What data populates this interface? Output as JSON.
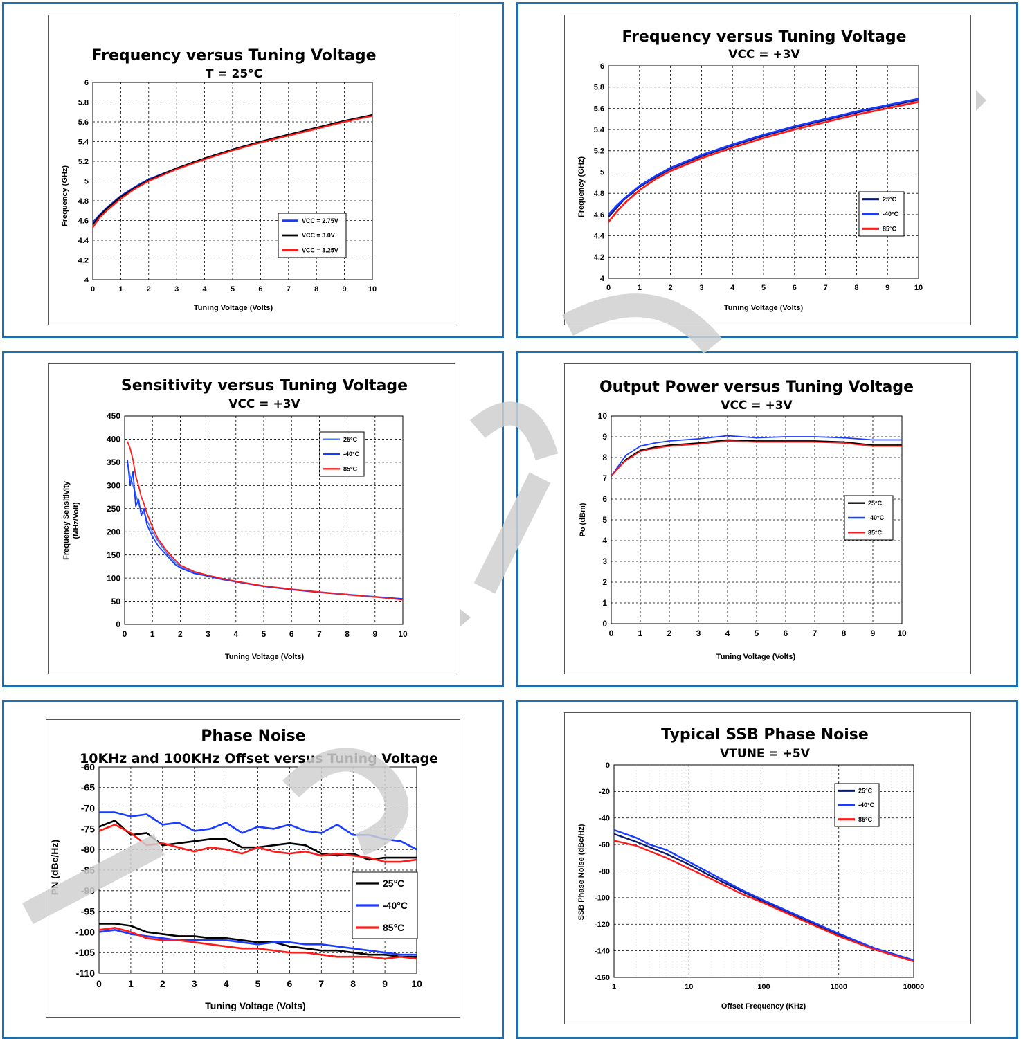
{
  "colors": {
    "panel_border": "#1f6fb0",
    "blue": "#1a3cff",
    "black": "#000000",
    "red": "#ff1a1a",
    "navy": "#0a1a6e",
    "light_blue": "#4a7aff",
    "watermark": "#d0d0d0"
  },
  "chart_data": [
    {
      "id": "c1",
      "type": "line",
      "title": "Frequency versus Tuning Voltage",
      "subtitle": "T = 25°C",
      "xlabel": "Tuning Voltage (Volts)",
      "ylabel": "Frequency (GHz)",
      "xlim": [
        0,
        10
      ],
      "ylim": [
        4,
        6
      ],
      "xticks": [
        "0",
        "1",
        "2",
        "3",
        "4",
        "5",
        "6",
        "7",
        "8",
        "9",
        "10"
      ],
      "yticks": [
        "4",
        "4.2",
        "4.4",
        "4.6",
        "4.8",
        "5",
        "5.2",
        "5.4",
        "5.6",
        "5.8",
        "6"
      ],
      "grid": true,
      "legend_position": "bottom-right",
      "series": [
        {
          "name": "VCC = 2.75V",
          "color": "#1a3cff",
          "x": [
            0,
            0.25,
            0.5,
            1,
            1.5,
            2,
            3,
            4,
            5,
            6,
            7,
            8,
            9,
            10
          ],
          "values": [
            4.58,
            4.66,
            4.73,
            4.85,
            4.94,
            5.02,
            5.13,
            5.23,
            5.32,
            5.4,
            5.47,
            5.54,
            5.61,
            5.67
          ]
        },
        {
          "name": "VCC = 3.0V",
          "color": "#000000",
          "x": [
            0,
            0.25,
            0.5,
            1,
            1.5,
            2,
            3,
            4,
            5,
            6,
            7,
            8,
            9,
            10
          ],
          "values": [
            4.56,
            4.65,
            4.72,
            4.84,
            4.93,
            5.01,
            5.13,
            5.23,
            5.32,
            5.4,
            5.47,
            5.54,
            5.61,
            5.67
          ]
        },
        {
          "name": "VCC = 3.25V",
          "color": "#ff1a1a",
          "x": [
            0,
            0.25,
            0.5,
            1,
            1.5,
            2,
            3,
            4,
            5,
            6,
            7,
            8,
            9,
            10
          ],
          "values": [
            4.53,
            4.63,
            4.7,
            4.82,
            4.92,
            5.0,
            5.12,
            5.22,
            5.31,
            5.39,
            5.46,
            5.53,
            5.6,
            5.66
          ]
        }
      ]
    },
    {
      "id": "c2",
      "type": "line",
      "title": "Frequency versus Tuning Voltage",
      "subtitle": "VCC = +3V",
      "xlabel": "Tuning Voltage (Volts)",
      "ylabel": "Frequency (GHz)",
      "xlim": [
        0,
        10
      ],
      "ylim": [
        4,
        6
      ],
      "xticks": [
        "0",
        "1",
        "2",
        "3",
        "4",
        "5",
        "6",
        "7",
        "8",
        "9",
        "10"
      ],
      "yticks": [
        "4",
        "4.2",
        "4.4",
        "4.6",
        "4.8",
        "5",
        "5.2",
        "5.4",
        "5.6",
        "5.8",
        "6"
      ],
      "grid": true,
      "legend_position": "right",
      "series": [
        {
          "name": "25°C",
          "color": "#0a1a6e",
          "x": [
            0,
            0.25,
            0.5,
            1,
            1.5,
            2,
            3,
            4,
            5,
            6,
            7,
            8,
            9,
            10
          ],
          "values": [
            4.58,
            4.66,
            4.74,
            4.86,
            4.95,
            5.03,
            5.15,
            5.25,
            5.34,
            5.42,
            5.49,
            5.56,
            5.62,
            5.68
          ]
        },
        {
          "name": "-40°C",
          "color": "#1a3cff",
          "x": [
            0,
            0.25,
            0.5,
            1,
            1.5,
            2,
            3,
            4,
            5,
            6,
            7,
            8,
            9,
            10
          ],
          "values": [
            4.6,
            4.68,
            4.75,
            4.87,
            4.96,
            5.04,
            5.16,
            5.26,
            5.35,
            5.43,
            5.5,
            5.57,
            5.63,
            5.69
          ]
        },
        {
          "name": "85°C",
          "color": "#ff1a1a",
          "x": [
            0,
            0.25,
            0.5,
            1,
            1.5,
            2,
            3,
            4,
            5,
            6,
            7,
            8,
            9,
            10
          ],
          "values": [
            4.53,
            4.62,
            4.7,
            4.83,
            4.93,
            5.01,
            5.13,
            5.23,
            5.32,
            5.4,
            5.47,
            5.54,
            5.6,
            5.66
          ]
        }
      ]
    },
    {
      "id": "c3",
      "type": "line",
      "title": "Sensitivity versus Tuning Voltage",
      "subtitle": "VCC = +3V",
      "xlabel": "Tuning Voltage (Volts)",
      "ylabel": "Frequency Sensitivity",
      "ylabel2": "(MHz/Volt)",
      "xlim": [
        0,
        10
      ],
      "ylim": [
        0,
        450
      ],
      "xticks": [
        "0",
        "1",
        "2",
        "3",
        "4",
        "5",
        "6",
        "7",
        "8",
        "9",
        "10"
      ],
      "yticks": [
        "0",
        "50",
        "100",
        "150",
        "200",
        "250",
        "300",
        "350",
        "400",
        "450"
      ],
      "grid": true,
      "legend_position": "top-right",
      "series": [
        {
          "name": "25°C",
          "color": "#4a7aff",
          "x": [
            0.1,
            0.2,
            0.3,
            0.4,
            0.5,
            0.6,
            0.7,
            0.8,
            1,
            1.2,
            1.5,
            1.8,
            2,
            2.5,
            3,
            3.5,
            4,
            5,
            6,
            7,
            8,
            9,
            10
          ],
          "values": [
            350,
            320,
            300,
            280,
            260,
            245,
            240,
            225,
            200,
            180,
            155,
            135,
            125,
            112,
            105,
            98,
            93,
            83,
            76,
            70,
            65,
            60,
            55
          ]
        },
        {
          "name": "-40°C",
          "color": "#1a3cff",
          "x": [
            0.1,
            0.2,
            0.3,
            0.4,
            0.5,
            0.6,
            0.7,
            0.8,
            1,
            1.2,
            1.5,
            1.8,
            2,
            2.5,
            3,
            3.5,
            4,
            5,
            6,
            7,
            8,
            9,
            10
          ],
          "values": [
            355,
            300,
            330,
            255,
            270,
            235,
            250,
            215,
            190,
            170,
            150,
            130,
            122,
            110,
            104,
            97,
            92,
            82,
            75,
            69,
            64,
            59,
            55
          ]
        },
        {
          "name": "85°C",
          "color": "#ff1a1a",
          "x": [
            0.1,
            0.2,
            0.3,
            0.4,
            0.5,
            0.6,
            0.7,
            0.8,
            1,
            1.2,
            1.5,
            1.8,
            2,
            2.5,
            3,
            3.5,
            4,
            5,
            6,
            7,
            8,
            9,
            10
          ],
          "values": [
            395,
            380,
            355,
            320,
            300,
            275,
            260,
            240,
            210,
            185,
            160,
            140,
            128,
            114,
            106,
            99,
            93,
            83,
            76,
            70,
            64,
            59,
            53
          ]
        }
      ]
    },
    {
      "id": "c4",
      "type": "line",
      "title": "Output Power versus Tuning Voltage",
      "subtitle": "VCC = +3V",
      "xlabel": "Tuning Voltage (Volts)",
      "ylabel": "Po (dBm)",
      "xlim": [
        0,
        10
      ],
      "ylim": [
        0,
        10
      ],
      "xticks": [
        "0",
        "1",
        "2",
        "3",
        "4",
        "5",
        "6",
        "7",
        "8",
        "9",
        "10"
      ],
      "yticks": [
        "0",
        "1",
        "2",
        "3",
        "4",
        "5",
        "6",
        "7",
        "8",
        "9",
        "10"
      ],
      "grid": true,
      "legend_position": "right",
      "series": [
        {
          "name": "25°C",
          "color": "#000000",
          "x": [
            0,
            0.25,
            0.5,
            1,
            1.5,
            2,
            3,
            4,
            5,
            6,
            7,
            8,
            9,
            10
          ],
          "values": [
            7.1,
            7.5,
            7.9,
            8.35,
            8.5,
            8.6,
            8.7,
            8.85,
            8.8,
            8.8,
            8.8,
            8.75,
            8.6,
            8.6
          ]
        },
        {
          "name": "-40°C",
          "color": "#1a3cff",
          "x": [
            0,
            0.25,
            0.5,
            1,
            1.5,
            2,
            3,
            4,
            5,
            6,
            7,
            8,
            9,
            10
          ],
          "values": [
            7.1,
            7.6,
            8.1,
            8.55,
            8.7,
            8.8,
            8.9,
            9.05,
            8.95,
            9.0,
            9.0,
            8.95,
            8.85,
            8.85
          ]
        },
        {
          "name": "85°C",
          "color": "#ff1a1a",
          "x": [
            0,
            0.25,
            0.5,
            1,
            1.5,
            2,
            3,
            4,
            5,
            6,
            7,
            8,
            9,
            10
          ],
          "values": [
            7.1,
            7.5,
            7.85,
            8.3,
            8.45,
            8.55,
            8.65,
            8.8,
            8.75,
            8.75,
            8.75,
            8.7,
            8.55,
            8.55
          ]
        }
      ]
    },
    {
      "id": "c5",
      "type": "line",
      "title": "Phase Noise",
      "subtitle": "10KHz and 100KHz Offset versus Tuning Voltage",
      "xlabel": "Tuning Voltage (Volts)",
      "ylabel": "PN (dBc/Hz)",
      "xlim": [
        0,
        10
      ],
      "ylim": [
        -110,
        -60
      ],
      "xticks": [
        "0",
        "1",
        "2",
        "3",
        "4",
        "5",
        "6",
        "7",
        "8",
        "9",
        "10"
      ],
      "yticks": [
        "-110",
        "-105",
        "-100",
        "-95",
        "-90",
        "-85",
        "-80",
        "-75",
        "-70",
        "-65",
        "-60"
      ],
      "grid": true,
      "legend_position": "right",
      "series": [
        {
          "name": "25°C",
          "color": "#000000",
          "x": [
            0,
            0.5,
            1,
            1.5,
            2,
            2.5,
            3,
            3.5,
            4,
            4.5,
            5,
            5.5,
            6,
            6.5,
            7,
            7.5,
            8,
            8.5,
            9,
            9.5,
            10
          ],
          "values": [
            -74.5,
            -73,
            -76.5,
            -76,
            -79,
            -78.5,
            -78,
            -77.5,
            -77.5,
            -79.5,
            -79.5,
            -79,
            -78.5,
            -79,
            -81,
            -81.5,
            -81,
            -82.5,
            -82,
            -82,
            -82
          ]
        },
        {
          "name": "-40°C",
          "color": "#1a3cff",
          "x": [
            0,
            0.5,
            1,
            1.5,
            2,
            2.5,
            3,
            3.5,
            4,
            4.5,
            5,
            5.5,
            6,
            6.5,
            7,
            7.5,
            8,
            8.5,
            9,
            9.5,
            10
          ],
          "values": [
            -71,
            -71,
            -72,
            -71.5,
            -74,
            -73.5,
            -75.5,
            -75,
            -73.5,
            -76,
            -74.5,
            -75,
            -74,
            -75.5,
            -76,
            -74,
            -76.5,
            -76.5,
            -77.5,
            -78,
            -80
          ]
        },
        {
          "name": "85°C",
          "color": "#ff1a1a",
          "x": [
            0,
            0.5,
            1,
            1.5,
            2,
            2.5,
            3,
            3.5,
            4,
            4.5,
            5,
            5.5,
            6,
            6.5,
            7,
            7.5,
            8,
            8.5,
            9,
            9.5,
            10
          ],
          "values": [
            -75.5,
            -74,
            -76,
            -79,
            -78.5,
            -79.5,
            -80.5,
            -79.5,
            -80,
            -81,
            -79.5,
            -80.5,
            -81,
            -80.5,
            -81.5,
            -81,
            -81.5,
            -82,
            -83,
            -83,
            -82.5
          ]
        },
        {
          "name": "",
          "color": "#000000",
          "x": [
            0,
            0.5,
            1,
            1.5,
            2,
            2.5,
            3,
            3.5,
            4,
            4.5,
            5,
            5.5,
            6,
            6.5,
            7,
            7.5,
            8,
            8.5,
            9,
            9.5,
            10
          ],
          "values": [
            -98,
            -98,
            -98.5,
            -100,
            -100.5,
            -101,
            -101,
            -101.5,
            -101.5,
            -102,
            -102.5,
            -102.5,
            -103.5,
            -104,
            -104.5,
            -104.5,
            -105,
            -105.5,
            -105.5,
            -106,
            -106
          ]
        },
        {
          "name": "",
          "color": "#1a3cff",
          "x": [
            0,
            0.5,
            1,
            1.5,
            2,
            2.5,
            3,
            3.5,
            4,
            4.5,
            5,
            5.5,
            6,
            6.5,
            7,
            7.5,
            8,
            8.5,
            9,
            9.5,
            10
          ],
          "values": [
            -100,
            -99.5,
            -100.5,
            -101,
            -101.5,
            -102,
            -102,
            -102,
            -102,
            -102.5,
            -103,
            -102.5,
            -102.5,
            -103,
            -103,
            -103.5,
            -104,
            -104.5,
            -105,
            -105.5,
            -105.5
          ]
        },
        {
          "name": "",
          "color": "#ff1a1a",
          "x": [
            0,
            0.5,
            1,
            1.5,
            2,
            2.5,
            3,
            3.5,
            4,
            4.5,
            5,
            5.5,
            6,
            6.5,
            7,
            7.5,
            8,
            8.5,
            9,
            9.5,
            10
          ],
          "values": [
            -99.5,
            -99,
            -100,
            -101.5,
            -102,
            -102,
            -102.5,
            -103,
            -103.5,
            -104,
            -104,
            -104.5,
            -105,
            -105,
            -105.5,
            -106,
            -106,
            -106,
            -106.5,
            -106,
            -106.5
          ]
        }
      ]
    },
    {
      "id": "c6",
      "type": "line",
      "title": "Typical SSB Phase Noise",
      "subtitle": "VTUNE = +5V",
      "xlabel": "Offset Frequency (KHz)",
      "ylabel": "SSB Phase Noise (dBc/Hz)",
      "xscale": "log",
      "xlim": [
        1,
        10000
      ],
      "ylim": [
        -160,
        0
      ],
      "xticks": [
        "1",
        "10",
        "100",
        "1000",
        "10000"
      ],
      "yticks": [
        "-160",
        "-140",
        "-120",
        "-100",
        "-80",
        "-60",
        "-40",
        "-20",
        "0"
      ],
      "grid": true,
      "legend_position": "top-right",
      "series": [
        {
          "name": "25°C",
          "color": "#0a1a6e",
          "x": [
            1,
            2,
            3,
            5,
            10,
            20,
            50,
            100,
            300,
            1000,
            3000,
            10000
          ],
          "values": [
            -52,
            -58,
            -62,
            -67,
            -75,
            -84,
            -95,
            -103,
            -115,
            -128,
            -138,
            -147
          ]
        },
        {
          "name": "-40°C",
          "color": "#1a3cff",
          "x": [
            1,
            2,
            3,
            5,
            10,
            20,
            50,
            100,
            300,
            1000,
            3000,
            10000
          ],
          "values": [
            -49,
            -55,
            -60,
            -64,
            -73,
            -82,
            -94,
            -102,
            -114,
            -127,
            -138,
            -147
          ]
        },
        {
          "name": "85°C",
          "color": "#ff1a1a",
          "x": [
            1,
            2,
            3,
            5,
            10,
            20,
            50,
            100,
            300,
            1000,
            3000,
            10000
          ],
          "values": [
            -57,
            -61,
            -65,
            -70,
            -78,
            -86,
            -97,
            -104,
            -116,
            -129,
            -139,
            -148
          ]
        }
      ]
    }
  ]
}
